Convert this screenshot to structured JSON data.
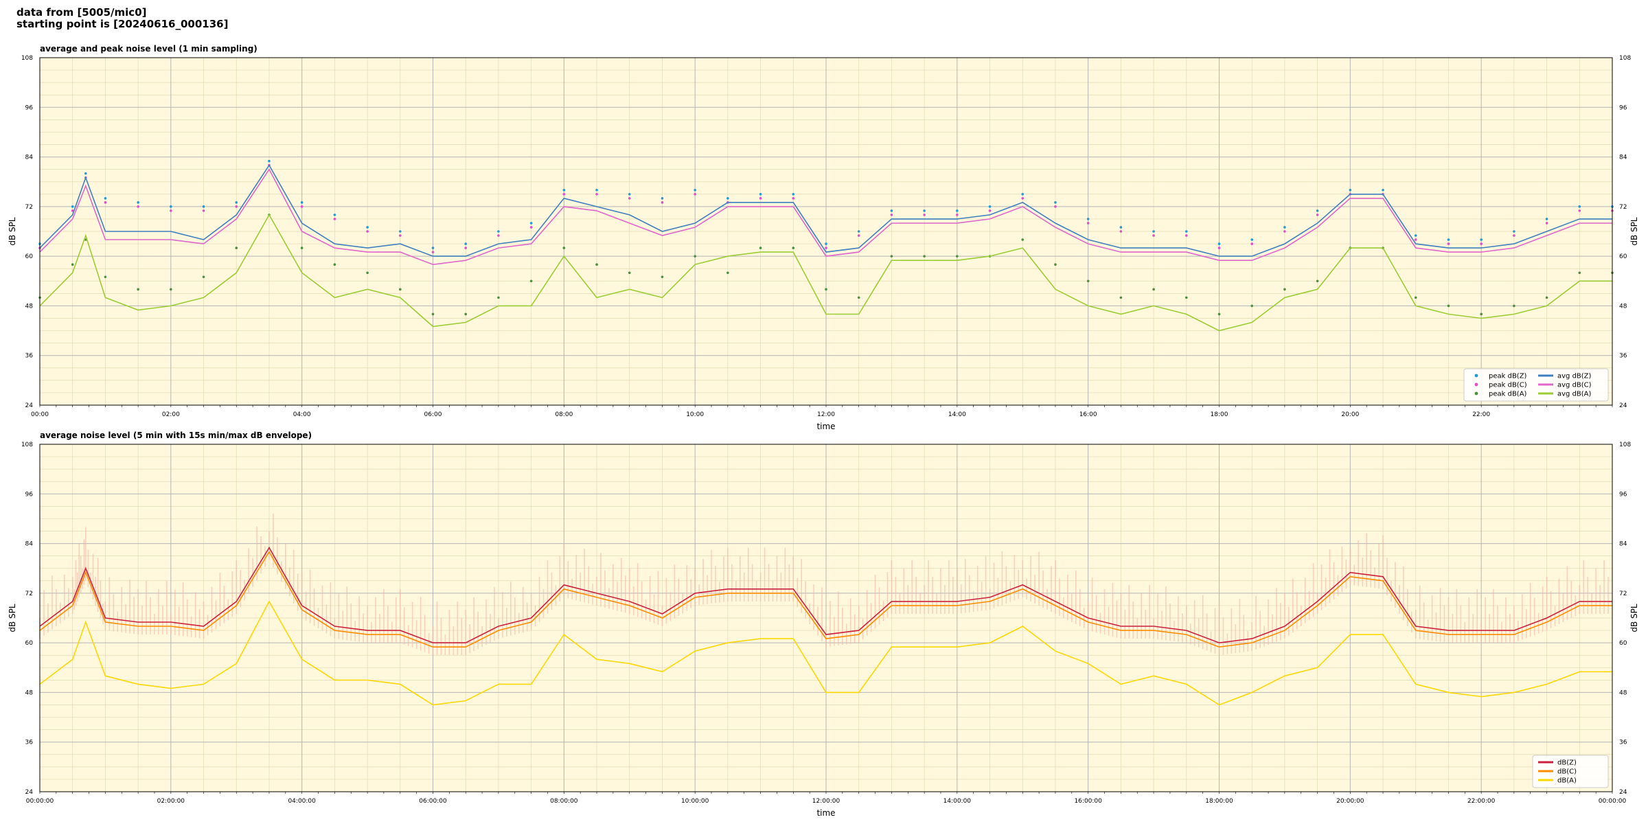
{
  "header": {
    "line1": "data from [5005/mic0]",
    "line2": "starting point is [20240616_000136]"
  },
  "chart_data": [
    {
      "type": "line",
      "title": "average and peak noise level (1 min sampling)",
      "xlabel": "time",
      "ylabel": "dB SPL",
      "xlim_hours": [
        0,
        24
      ],
      "ylim": [
        24,
        108
      ],
      "yticks": [
        24,
        36,
        48,
        60,
        72,
        84,
        96,
        108
      ],
      "xtick_labels": [
        "00:00",
        "02:00",
        "04:00",
        "06:00",
        "08:00",
        "10:00",
        "12:00",
        "14:00",
        "16:00",
        "18:00",
        "20:00",
        "22:00"
      ],
      "grid": true,
      "legend_position": "bottom-right",
      "legend_columns": 2,
      "series": [
        {
          "name": "peak dB(Z)",
          "kind": "scatter",
          "color": "#1f9bd6",
          "x": [
            0,
            0.5,
            0.7,
            1,
            1.5,
            2,
            2.5,
            3,
            3.5,
            4,
            4.5,
            5,
            5.5,
            6,
            6.5,
            7,
            7.5,
            8,
            8.5,
            9,
            9.5,
            10,
            10.5,
            11,
            11.5,
            12,
            12.5,
            13,
            13.5,
            14,
            14.5,
            15,
            15.5,
            16,
            16.5,
            17,
            17.5,
            18,
            18.5,
            19,
            19.5,
            20,
            20.5,
            21,
            21.5,
            22,
            22.5,
            23,
            23.5,
            24
          ],
          "y": [
            63,
            72,
            80,
            74,
            73,
            72,
            72,
            73,
            83,
            73,
            70,
            67,
            66,
            62,
            63,
            66,
            68,
            76,
            76,
            75,
            74,
            76,
            74,
            75,
            75,
            63,
            66,
            71,
            71,
            71,
            72,
            75,
            73,
            69,
            67,
            66,
            66,
            63,
            64,
            67,
            71,
            76,
            76,
            65,
            64,
            64,
            66,
            69,
            72,
            72
          ]
        },
        {
          "name": "peak dB(C)",
          "kind": "scatter",
          "color": "#e24ccf",
          "x": [
            0,
            0.5,
            0.7,
            1,
            1.5,
            2,
            2.5,
            3,
            3.5,
            4,
            4.5,
            5,
            5.5,
            6,
            6.5,
            7,
            7.5,
            8,
            8.5,
            9,
            9.5,
            10,
            10.5,
            11,
            11.5,
            12,
            12.5,
            13,
            13.5,
            14,
            14.5,
            15,
            15.5,
            16,
            16.5,
            17,
            17.5,
            18,
            18.5,
            19,
            19.5,
            20,
            20.5,
            21,
            21.5,
            22,
            22.5,
            23,
            23.5,
            24
          ],
          "y": [
            62,
            71,
            79,
            73,
            72,
            71,
            71,
            72,
            82,
            72,
            69,
            66,
            65,
            61,
            62,
            65,
            67,
            75,
            75,
            74,
            73,
            75,
            73,
            74,
            74,
            62,
            65,
            70,
            70,
            70,
            71,
            74,
            72,
            68,
            66,
            65,
            65,
            62,
            63,
            66,
            70,
            75,
            75,
            64,
            63,
            63,
            65,
            68,
            71,
            71
          ]
        },
        {
          "name": "peak dB(A)",
          "kind": "scatter",
          "color": "#4c8f3c",
          "x": [
            0,
            0.5,
            0.7,
            1,
            1.5,
            2,
            2.5,
            3,
            3.5,
            4,
            4.5,
            5,
            5.5,
            6,
            6.5,
            7,
            7.5,
            8,
            8.5,
            9,
            9.5,
            10,
            10.5,
            11,
            11.5,
            12,
            12.5,
            13,
            13.5,
            14,
            14.5,
            15,
            15.5,
            16,
            16.5,
            17,
            17.5,
            18,
            18.5,
            19,
            19.5,
            20,
            20.5,
            21,
            21.5,
            22,
            22.5,
            23,
            23.5,
            24
          ],
          "y": [
            50,
            58,
            64,
            55,
            52,
            52,
            55,
            62,
            70,
            62,
            58,
            56,
            52,
            46,
            46,
            50,
            54,
            62,
            58,
            56,
            55,
            60,
            56,
            62,
            62,
            52,
            50,
            60,
            60,
            60,
            60,
            64,
            58,
            54,
            50,
            52,
            50,
            46,
            48,
            52,
            54,
            62,
            62,
            50,
            48,
            46,
            48,
            50,
            56,
            56
          ]
        },
        {
          "name": "avg dB(Z)",
          "kind": "line",
          "color": "#3f7fbf",
          "x": [
            0,
            0.5,
            0.7,
            1,
            1.5,
            2,
            2.5,
            3,
            3.5,
            4,
            4.5,
            5,
            5.5,
            6,
            6.5,
            7,
            7.5,
            8,
            8.5,
            9,
            9.5,
            10,
            10.5,
            11,
            11.5,
            12,
            12.5,
            13,
            13.5,
            14,
            14.5,
            15,
            15.5,
            16,
            16.5,
            17,
            17.5,
            18,
            18.5,
            19,
            19.5,
            20,
            20.5,
            21,
            21.5,
            22,
            22.5,
            23,
            23.5,
            24
          ],
          "y": [
            62,
            70,
            79,
            66,
            66,
            66,
            64,
            70,
            82,
            68,
            63,
            62,
            63,
            60,
            60,
            63,
            64,
            74,
            72,
            70,
            66,
            68,
            73,
            73,
            73,
            61,
            62,
            69,
            69,
            69,
            70,
            73,
            68,
            64,
            62,
            62,
            62,
            60,
            60,
            63,
            68,
            75,
            75,
            63,
            62,
            62,
            63,
            66,
            69,
            69
          ]
        },
        {
          "name": "avg dB(C)",
          "kind": "line",
          "color": "#e066cc",
          "x": [
            0,
            0.5,
            0.7,
            1,
            1.5,
            2,
            2.5,
            3,
            3.5,
            4,
            4.5,
            5,
            5.5,
            6,
            6.5,
            7,
            7.5,
            8,
            8.5,
            9,
            9.5,
            10,
            10.5,
            11,
            11.5,
            12,
            12.5,
            13,
            13.5,
            14,
            14.5,
            15,
            15.5,
            16,
            16.5,
            17,
            17.5,
            18,
            18.5,
            19,
            19.5,
            20,
            20.5,
            21,
            21.5,
            22,
            22.5,
            23,
            23.5,
            24
          ],
          "y": [
            61,
            69,
            77,
            64,
            64,
            64,
            63,
            69,
            81,
            66,
            62,
            61,
            61,
            58,
            59,
            62,
            63,
            72,
            71,
            68,
            65,
            67,
            72,
            72,
            72,
            60,
            61,
            68,
            68,
            68,
            69,
            72,
            67,
            63,
            61,
            61,
            61,
            59,
            59,
            62,
            67,
            74,
            74,
            62,
            61,
            61,
            62,
            65,
            68,
            68
          ]
        },
        {
          "name": "avg dB(A)",
          "kind": "line",
          "color": "#9acd32",
          "x": [
            0,
            0.5,
            0.7,
            1,
            1.5,
            2,
            2.5,
            3,
            3.5,
            4,
            4.5,
            5,
            5.5,
            6,
            6.5,
            7,
            7.5,
            8,
            8.5,
            9,
            9.5,
            10,
            10.5,
            11,
            11.5,
            12,
            12.5,
            13,
            13.5,
            14,
            14.5,
            15,
            15.5,
            16,
            16.5,
            17,
            17.5,
            18,
            18.5,
            19,
            19.5,
            20,
            20.5,
            21,
            21.5,
            22,
            22.5,
            23,
            23.5,
            24
          ],
          "y": [
            48,
            56,
            65,
            50,
            47,
            48,
            50,
            56,
            70,
            56,
            50,
            52,
            50,
            43,
            44,
            48,
            48,
            60,
            50,
            52,
            50,
            58,
            60,
            61,
            61,
            46,
            46,
            59,
            59,
            59,
            60,
            62,
            52,
            48,
            46,
            48,
            46,
            42,
            44,
            50,
            52,
            62,
            62,
            48,
            46,
            45,
            46,
            48,
            54,
            54
          ]
        }
      ]
    },
    {
      "type": "line",
      "title": "average noise level (5 min with 15s min/max dB envelope)",
      "xlabel": "time",
      "ylabel": "dB SPL",
      "xlim_hours": [
        0,
        24
      ],
      "ylim": [
        24,
        108
      ],
      "yticks": [
        24,
        36,
        48,
        60,
        72,
        84,
        96,
        108
      ],
      "xtick_labels": [
        "00:00:00",
        "02:00:00",
        "04:00:00",
        "06:00:00",
        "08:00:00",
        "10:00:00",
        "12:00:00",
        "14:00:00",
        "16:00:00",
        "18:00:00",
        "20:00:00",
        "22:00:00",
        "00:00:00"
      ],
      "grid": true,
      "legend_position": "bottom-right",
      "envelope": {
        "color": "#f4b8a8",
        "min_offset_db": -3,
        "max_offset_db": 12
      },
      "series": [
        {
          "name": "dB(Z)",
          "color": "#cc1f3c",
          "x": [
            0,
            0.5,
            0.7,
            1,
            1.5,
            2,
            2.5,
            3,
            3.5,
            4,
            4.5,
            5,
            5.5,
            6,
            6.5,
            7,
            7.5,
            8,
            8.5,
            9,
            9.5,
            10,
            10.5,
            11,
            11.5,
            12,
            12.5,
            13,
            13.5,
            14,
            14.5,
            15,
            15.5,
            16,
            16.5,
            17,
            17.5,
            18,
            18.5,
            19,
            19.5,
            20,
            20.5,
            21,
            21.5,
            22,
            22.5,
            23,
            23.5,
            24
          ],
          "y": [
            64,
            70,
            78,
            66,
            65,
            65,
            64,
            70,
            83,
            69,
            64,
            63,
            63,
            60,
            60,
            64,
            66,
            74,
            72,
            70,
            67,
            72,
            73,
            73,
            73,
            62,
            63,
            70,
            70,
            70,
            71,
            74,
            70,
            66,
            64,
            64,
            63,
            60,
            61,
            64,
            70,
            77,
            76,
            64,
            63,
            63,
            63,
            66,
            70,
            70
          ]
        },
        {
          "name": "dB(C)",
          "color": "#ff8c00",
          "x": [
            0,
            0.5,
            0.7,
            1,
            1.5,
            2,
            2.5,
            3,
            3.5,
            4,
            4.5,
            5,
            5.5,
            6,
            6.5,
            7,
            7.5,
            8,
            8.5,
            9,
            9.5,
            10,
            10.5,
            11,
            11.5,
            12,
            12.5,
            13,
            13.5,
            14,
            14.5,
            15,
            15.5,
            16,
            16.5,
            17,
            17.5,
            18,
            18.5,
            19,
            19.5,
            20,
            20.5,
            21,
            21.5,
            22,
            22.5,
            23,
            23.5,
            24
          ],
          "y": [
            63,
            69,
            77,
            65,
            64,
            64,
            63,
            69,
            82,
            68,
            63,
            62,
            62,
            59,
            59,
            63,
            65,
            73,
            71,
            69,
            66,
            71,
            72,
            72,
            72,
            61,
            62,
            69,
            69,
            69,
            70,
            73,
            69,
            65,
            63,
            63,
            62,
            59,
            60,
            63,
            69,
            76,
            75,
            63,
            62,
            62,
            62,
            65,
            69,
            69
          ]
        },
        {
          "name": "dB(A)",
          "color": "#ffd700",
          "x": [
            0,
            0.5,
            0.7,
            1,
            1.5,
            2,
            2.5,
            3,
            3.5,
            4,
            4.5,
            5,
            5.5,
            6,
            6.5,
            7,
            7.5,
            8,
            8.5,
            9,
            9.5,
            10,
            10.5,
            11,
            11.5,
            12,
            12.5,
            13,
            13.5,
            14,
            14.5,
            15,
            15.5,
            16,
            16.5,
            17,
            17.5,
            18,
            18.5,
            19,
            19.5,
            20,
            20.5,
            21,
            21.5,
            22,
            22.5,
            23,
            23.5,
            24
          ],
          "y": [
            50,
            56,
            65,
            52,
            50,
            49,
            50,
            55,
            70,
            56,
            51,
            51,
            50,
            45,
            46,
            50,
            50,
            62,
            56,
            55,
            53,
            58,
            60,
            61,
            61,
            48,
            48,
            59,
            59,
            59,
            60,
            64,
            58,
            55,
            50,
            52,
            50,
            45,
            48,
            52,
            54,
            62,
            62,
            50,
            48,
            47,
            48,
            50,
            53,
            53
          ]
        }
      ]
    }
  ]
}
